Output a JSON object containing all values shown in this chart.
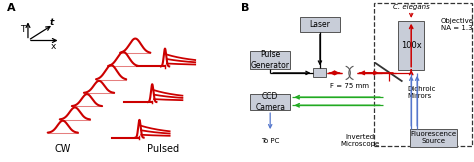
{
  "fig_width": 4.74,
  "fig_height": 1.62,
  "dpi": 100,
  "bg_color": "#ffffff",
  "red_color": "#cc0000",
  "label_A": "A",
  "label_B": "B",
  "label_CW": "CW",
  "label_Pulsed": "Pulsed",
  "label_T": "T",
  "label_t": "t",
  "label_x": "x",
  "label_laser": "Laser",
  "label_pulse_gen": "Pulse\nGenerator",
  "label_ccd": "CCD\nCamera",
  "label_to_pc": "To PC",
  "label_f": "F = 75 mm",
  "label_inverted": "Inverted\nMicroscope",
  "label_fluorescence": "Fluorescence\nSource",
  "label_objective": "Objective\nNA = 1.3",
  "label_100x": "100x",
  "label_dichroic": "Dichroic\nMirrors",
  "label_celegans": "C. elegans",
  "box_color": "#c8cdd8",
  "box_edge": "#555555",
  "green_color": "#22aa22",
  "blue_color": "#5577cc",
  "arrow_color": "#222222",
  "dashed_box_color": "#333333"
}
